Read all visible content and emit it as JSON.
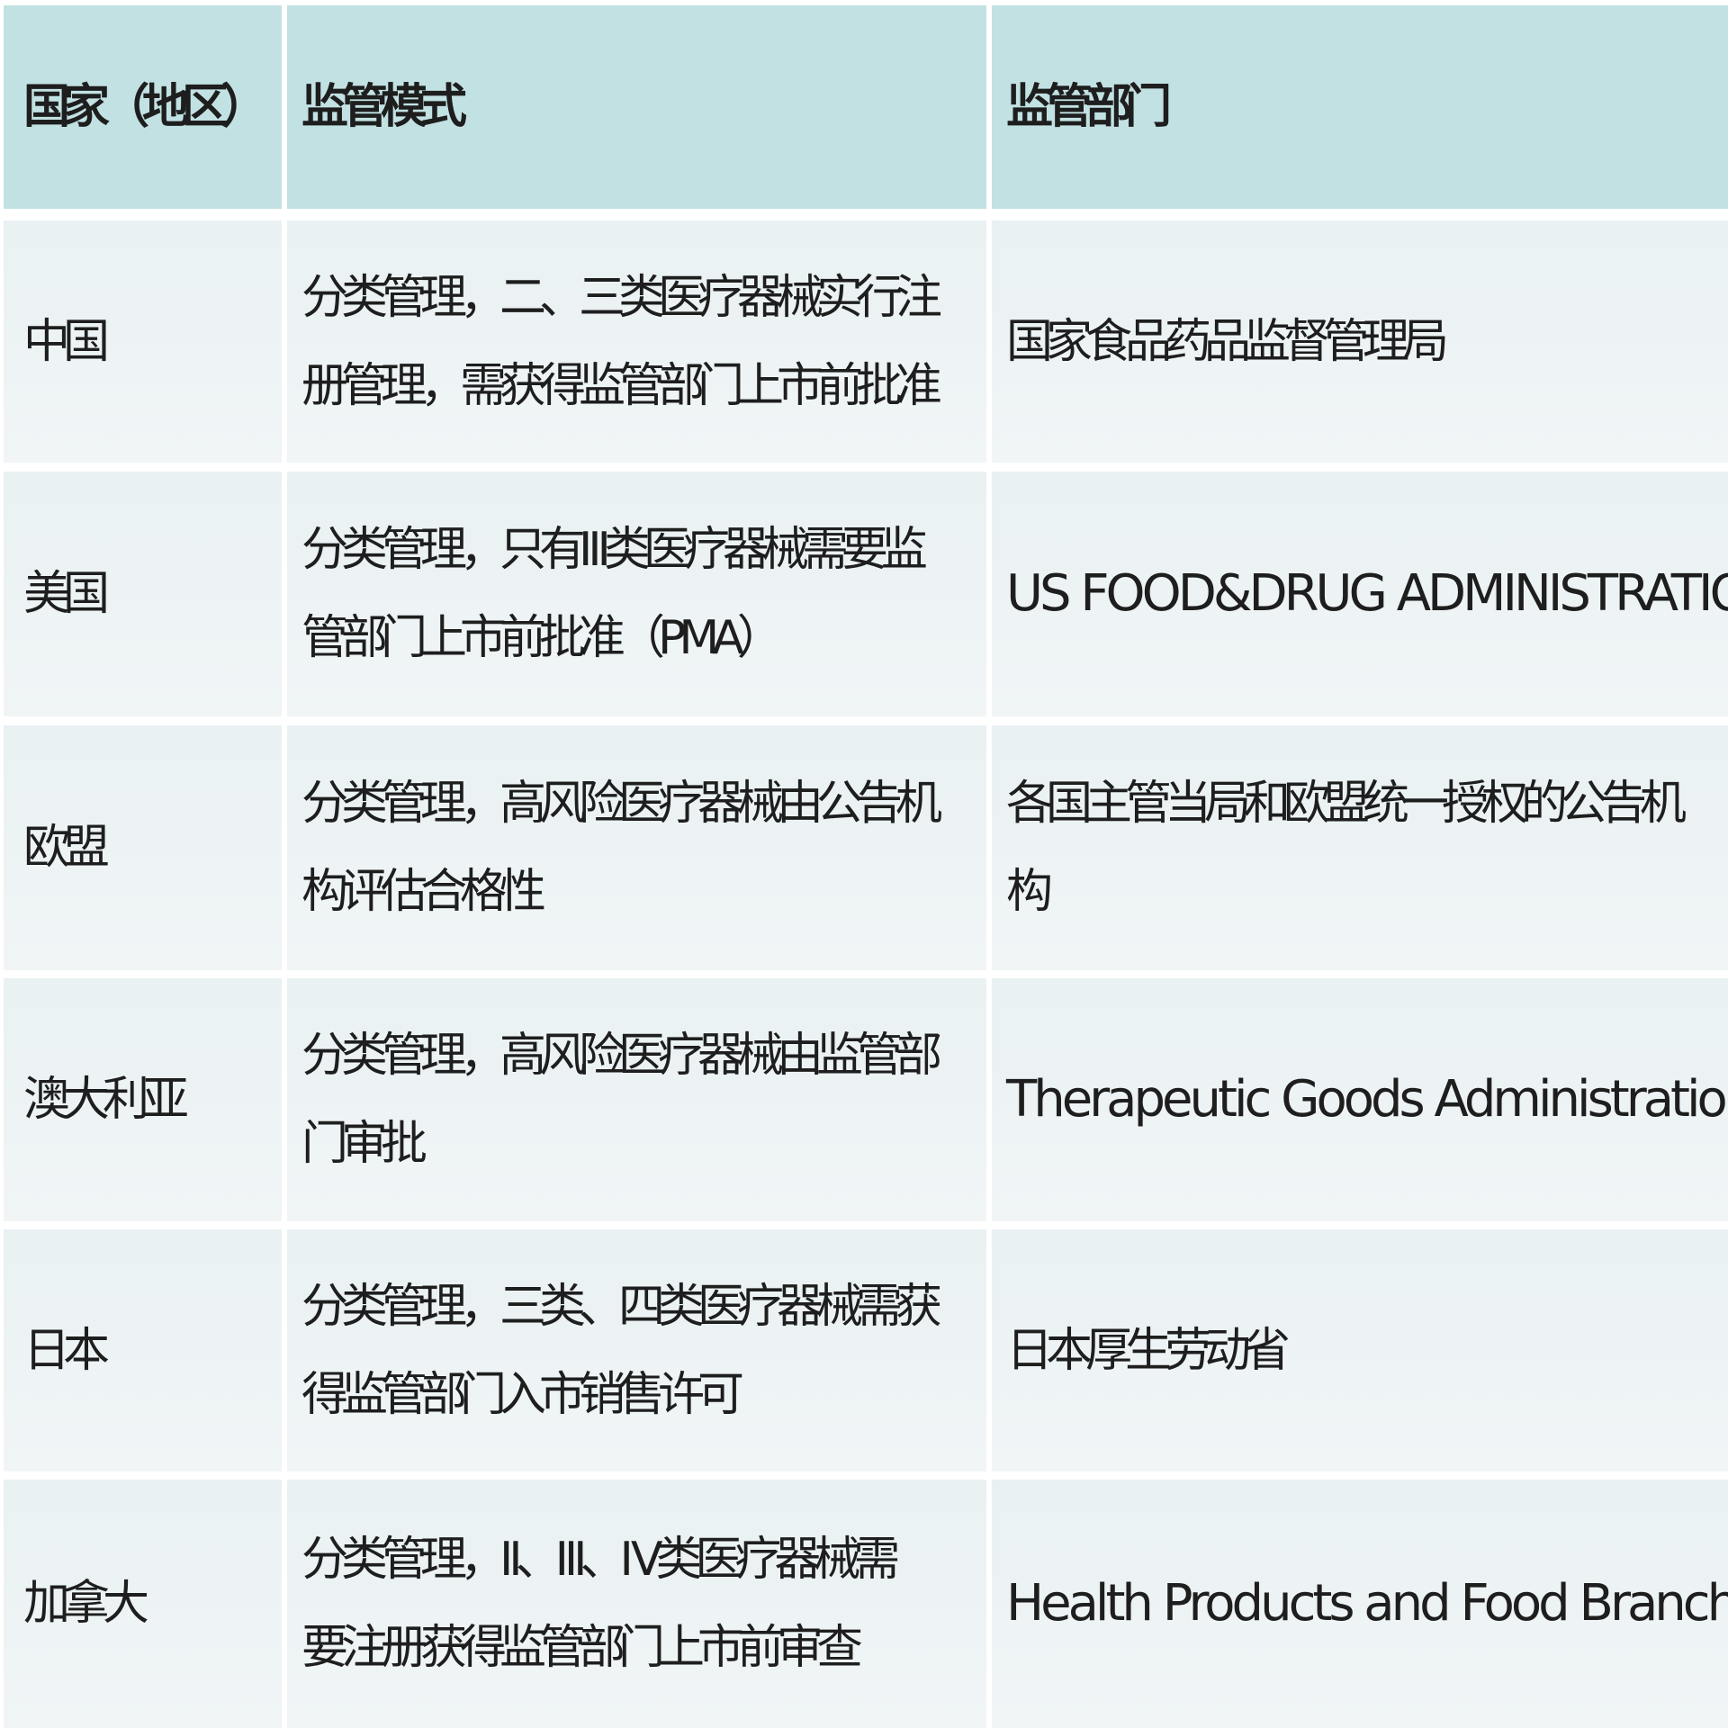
{
  "colors": {
    "header_bg": "#c2e1e3",
    "row_bg": "#edf3f5",
    "text": "#1e1e1e"
  },
  "table": {
    "headers": [
      "国家（地区）",
      "监管模式",
      "监管部门"
    ],
    "rows": [
      {
        "country": "中国",
        "mode": [
          "分类管理，二、三类医疗器械实行注",
          "册管理，需获得监管部门上市前批准"
        ],
        "dept": [
          "国家食品药品监督管理局"
        ]
      },
      {
        "country": "美国",
        "mode": [
          "分类管理，只有Ⅲ类医疗器械需要监",
          "管部门上市前批准（PMA）"
        ],
        "dept": [
          "US FOOD&DRUG ADMINISTRATION"
        ]
      },
      {
        "country": "欧盟",
        "mode": [
          "分类管理，高风险医疗器械由公告机",
          "构评估合格性"
        ],
        "dept": [
          "各国主管当局和欧盟统一授权的公告机",
          "构"
        ]
      },
      {
        "country": "澳大利亚",
        "mode": [
          "分类管理，高风险医疗器械由监管部",
          "门审批"
        ],
        "dept": [
          "Therapeutic Goods Administration"
        ]
      },
      {
        "country": "日本",
        "mode": [
          "分类管理，三类、四类医疗器械需获",
          "得监管部门入市销售许可"
        ],
        "dept": [
          "日本厚生劳动省"
        ]
      },
      {
        "country": "加拿大",
        "mode": [
          "分类管理，Ⅱ、Ⅲ、Ⅳ类医疗器械需",
          "要注册获得监管部门上市前审查"
        ],
        "dept": [
          "Health Products and Food Branch"
        ]
      }
    ]
  }
}
